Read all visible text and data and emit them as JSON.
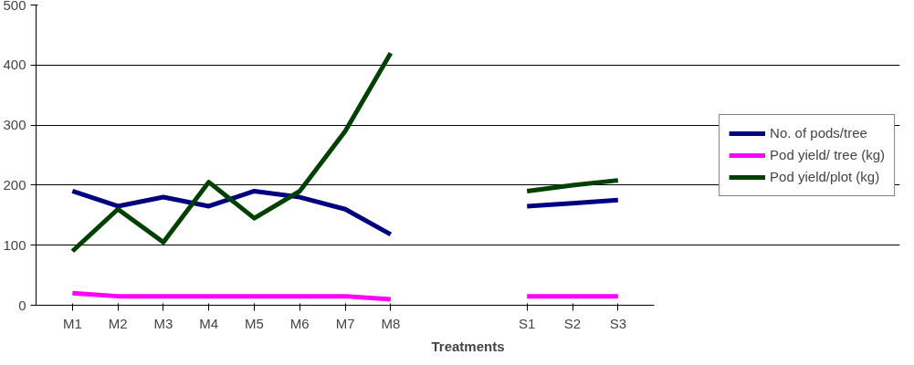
{
  "chart_data": {
    "type": "line",
    "xlabel": "Treatments",
    "categories": [
      "M1",
      "M2",
      "M3",
      "M4",
      "M5",
      "M6",
      "M7",
      "M8",
      null,
      null,
      "S1",
      "S2",
      "S3"
    ],
    "series": [
      {
        "name": "No. of pods/tree",
        "color": "#000080",
        "values": [
          190,
          165,
          180,
          165,
          190,
          180,
          160,
          118,
          null,
          null,
          165,
          170,
          175
        ]
      },
      {
        "name": "Pod yield/ tree (kg)",
        "color": "#ff00ff",
        "values": [
          20,
          15,
          15,
          15,
          15,
          15,
          15,
          10,
          null,
          null,
          15,
          15,
          15
        ]
      },
      {
        "name": "Pod yield/plot (kg)",
        "color": "#004000",
        "values": [
          90,
          160,
          105,
          205,
          145,
          190,
          290,
          420,
          null,
          null,
          190,
          200,
          208
        ]
      }
    ],
    "ylim": [
      0,
      500
    ],
    "yticks": [
      0,
      100,
      200,
      300,
      400,
      500
    ],
    "grid": "y",
    "legend": "right",
    "marker": "none",
    "line_style": "solid"
  }
}
